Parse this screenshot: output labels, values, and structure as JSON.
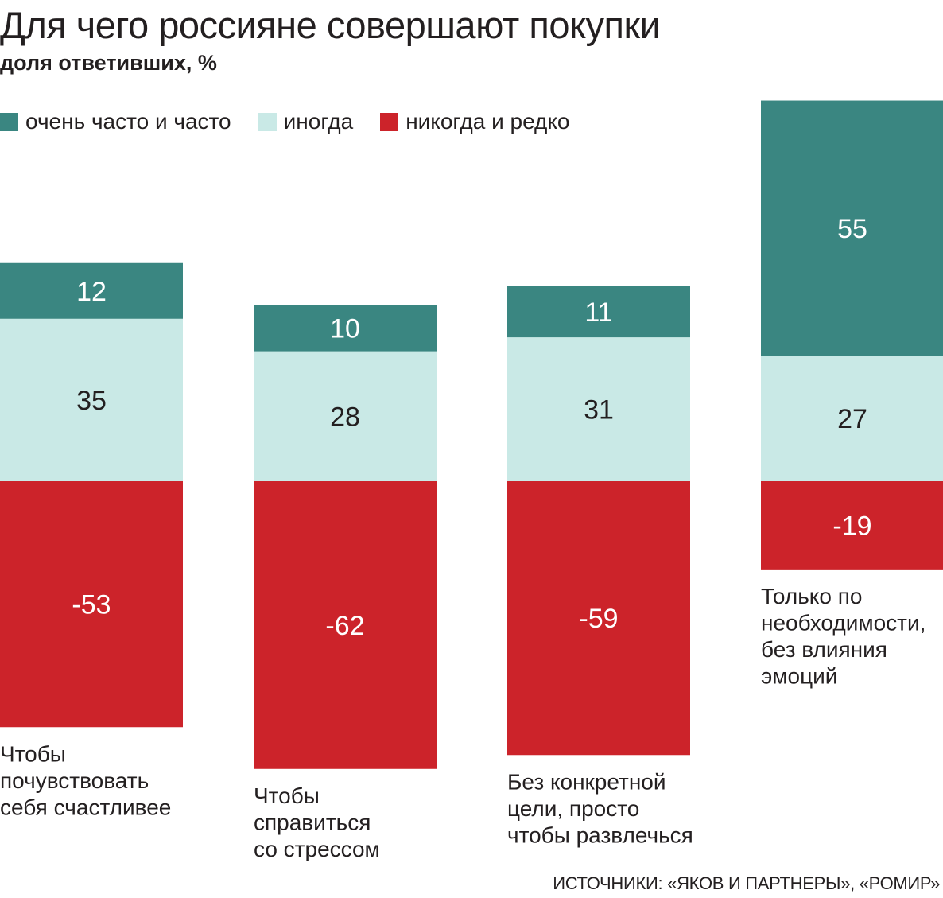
{
  "chart_data": {
    "type": "bar",
    "stacked": true,
    "diverging": true,
    "title": "Для чего россияне совершают покупки",
    "subtitle": "доля ответивших, %",
    "categories": [
      [
        "Чтобы",
        "почувствовать",
        "себя счастливее"
      ],
      [
        "Чтобы",
        "справиться",
        "со стрессом"
      ],
      [
        "Без конкретной",
        "цели, просто",
        "чтобы развлечься"
      ],
      [
        "Только по",
        "необходимости,",
        "без влияния",
        "эмоций"
      ]
    ],
    "series": [
      {
        "name": "очень часто и часто",
        "color": "#3a8681",
        "values": [
          12,
          10,
          11,
          55
        ]
      },
      {
        "name": "иногда",
        "color": "#c9e9e6",
        "values": [
          35,
          28,
          31,
          27
        ]
      },
      {
        "name": "никогда и редко",
        "color": "#cc232a",
        "values": [
          -53,
          -62,
          -59,
          -19
        ]
      }
    ],
    "legend_position": "top-left",
    "grid": false,
    "axes_visible": false,
    "data_labels": true,
    "source": "ИСТОЧНИКИ: «ЯКОВ И ПАРТНЕРЫ», «РОМИР»"
  }
}
